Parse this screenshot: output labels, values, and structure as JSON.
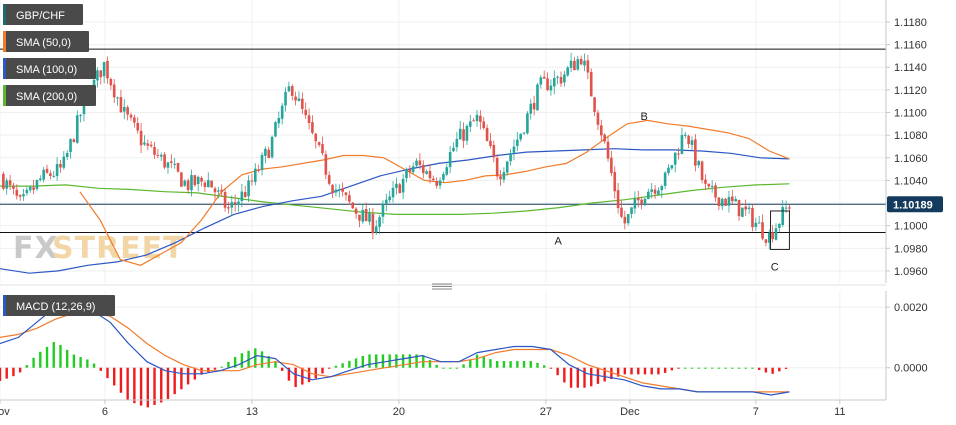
{
  "chart_data": [
    {
      "type": "candlestick",
      "symbol": "GBP/CHF",
      "legend": [
        {
          "label": "GBP/CHF",
          "color": "#1f6b6b"
        },
        {
          "label": "SMA (50,0)",
          "color": "#f07c2b"
        },
        {
          "label": "SMA (100,0)",
          "color": "#2b56c4"
        },
        {
          "label": "SMA (200,0)",
          "color": "#5cb82f"
        }
      ],
      "y_ticks": [
        "1.1180",
        "1.1160",
        "1.1140",
        "1.1120",
        "1.1100",
        "1.1080",
        "1.1060",
        "1.1040",
        "1.1020",
        "1.1000",
        "1.0980",
        "1.0960"
      ],
      "ylim": [
        1.0952,
        1.1195
      ],
      "current_price": "1.10189",
      "current_price_value": 1.10189,
      "horizontal_levels": [
        1.1156,
        1.0994,
        1.10189
      ],
      "annotations": [
        {
          "text": "A",
          "x": 26.6,
          "y": 1.0987
        },
        {
          "text": "B",
          "x": 30.7,
          "y": 1.1097
        },
        {
          "text": "C",
          "x": 36.9,
          "y": 1.0964
        }
      ],
      "box": {
        "x0": 36.7,
        "x1": 37.6,
        "y0": 1.0979,
        "y1": 1.1013
      },
      "close": [
        1.1045,
        1.1018,
        1.1042,
        1.105,
        1.1105,
        1.1143,
        1.1098,
        1.107,
        1.1055,
        1.1036,
        1.104,
        1.1014,
        1.1034,
        1.107,
        1.1125,
        1.108,
        1.1036,
        1.1015,
        1.1,
        1.103,
        1.1055,
        1.104,
        1.1075,
        1.1095,
        1.1045,
        1.108,
        1.1123,
        1.1131,
        1.115,
        1.108,
        1.1,
        1.103,
        1.104,
        1.1085,
        1.103,
        1.1022,
        1.101,
        1.099,
        1.1019
      ],
      "sma50": [
        1.103,
        1.1005,
        1.097,
        1.0965,
        1.0975,
        1.0985,
        1.1005,
        1.103,
        1.1045,
        1.105,
        1.1052,
        1.1055,
        1.1058,
        1.1062,
        1.1062,
        1.106,
        1.105,
        1.104,
        1.1038,
        1.104,
        1.1044,
        1.1045,
        1.1048,
        1.1052,
        1.1055,
        1.1065,
        1.1078,
        1.109,
        1.1093,
        1.109,
        1.1088,
        1.1085,
        1.1082,
        1.1077,
        1.1066,
        1.1059
      ],
      "sma100": [
        1.0962,
        1.0958,
        1.096,
        1.0965,
        1.0968,
        1.0974,
        1.0985,
        1.0998,
        1.101,
        1.1017,
        1.1022,
        1.1026,
        1.1035,
        1.1044,
        1.105,
        1.1055,
        1.1058,
        1.1062,
        1.1065,
        1.1066,
        1.1067,
        1.1068,
        1.1067,
        1.1067,
        1.1066,
        1.1064,
        1.106,
        1.1059
      ],
      "sma200": [
        1.1035,
        1.1035,
        1.1036,
        1.1033,
        1.1032,
        1.103,
        1.1029,
        1.1025,
        1.1021,
        1.1018,
        1.1015,
        1.1012,
        1.101,
        1.101,
        1.101,
        1.1011,
        1.1013,
        1.1016,
        1.102,
        1.1023,
        1.1027,
        1.1031,
        1.1034,
        1.1036,
        1.1037
      ]
    },
    {
      "type": "macd",
      "legend": [
        {
          "label": "MACD (12,26,9)",
          "color": "#2b56c4"
        }
      ],
      "y_ticks": [
        "0.0020",
        "0.0000"
      ],
      "ylim": [
        -0.001,
        0.0025
      ],
      "macd": [
        0.0008,
        0.001,
        0.0015,
        0.002,
        0.002,
        0.0019,
        0.0015,
        0.0008,
        0.0002,
        -0.0001,
        -0.0002,
        -0.0002,
        -0.0001,
        0.0001,
        0.0004,
        0.0003,
        -0.0002,
        -0.0004,
        -0.0003,
        -0.0001,
        0.0001,
        0.0002,
        0.0003,
        0.0004,
        0.0002,
        0.0002,
        0.0005,
        0.0006,
        0.0007,
        0.0007,
        0.0006,
        0.0001,
        -0.0002,
        -0.0003,
        -0.0004,
        -0.0006,
        -0.0007,
        -0.0007,
        -0.0008,
        -0.0008,
        -0.0008,
        -0.0008,
        -0.0009,
        -0.0008
      ],
      "signal": [
        0.001,
        0.0011,
        0.0013,
        0.0016,
        0.0018,
        0.0018,
        0.0017,
        0.0013,
        0.0008,
        0.0004,
        0.0001,
        -0.0001,
        -0.0001,
        -0.0001,
        0.0001,
        0.0002,
        0.0001,
        -0.0002,
        -0.0003,
        -0.0002,
        -0.0001,
        0.0,
        0.0001,
        0.0002,
        0.0002,
        0.0002,
        0.0003,
        0.0005,
        0.0006,
        0.0006,
        0.0006,
        0.0004,
        0.0001,
        -0.0001,
        -0.0003,
        -0.0005,
        -0.0006,
        -0.0007,
        -0.0008,
        -0.0008,
        -0.0008,
        -0.0008,
        -0.0008,
        -0.0008
      ]
    }
  ],
  "x_axis": {
    "ticks": [
      {
        "label": "Nov",
        "day": 0
      },
      {
        "label": "6",
        "day": 5
      },
      {
        "label": "13",
        "day": 12
      },
      {
        "label": "20",
        "day": 19
      },
      {
        "label": "27",
        "day": 26
      },
      {
        "label": "Dec",
        "day": 30
      },
      {
        "label": "7",
        "day": 36
      },
      {
        "label": "11",
        "day": 40
      }
    ],
    "xlim": [
      0,
      42.2
    ]
  },
  "watermark": {
    "left": "FX",
    "right": "STREET"
  },
  "colors": {
    "up": "#26a69a",
    "down": "#e0524a",
    "hist_up": "#22cc22",
    "hist_down": "#ee1c1c",
    "axis_line": "#c8c8c8",
    "price_tag": "#143b5e"
  }
}
